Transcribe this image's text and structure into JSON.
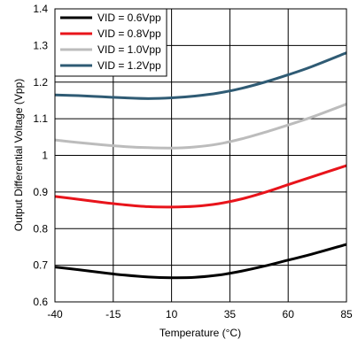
{
  "chart_data": {
    "type": "line",
    "xlabel": "Temperature (°C)",
    "ylabel": "Output Differential Voltage (Vpp)",
    "xlim": [
      -40,
      85
    ],
    "ylim": [
      0.6,
      1.4
    ],
    "xticks": [
      "-40",
      "-15",
      "10",
      "35",
      "60",
      "85"
    ],
    "yticks": [
      "0.6",
      "0.7",
      "0.8",
      "0.9",
      "1",
      "1.1",
      "1.2",
      "1.3",
      "1.4"
    ],
    "grid": true,
    "legend_position": "top-left",
    "x": [
      -40,
      -30,
      -20,
      -10,
      0,
      10,
      20,
      30,
      40,
      50,
      60,
      70,
      85
    ],
    "series": [
      {
        "name": "VID = 0.6Vpp",
        "color": "#000000",
        "values": [
          0.695,
          0.688,
          0.68,
          0.673,
          0.668,
          0.666,
          0.667,
          0.673,
          0.684,
          0.698,
          0.714,
          0.73,
          0.757
        ]
      },
      {
        "name": "VID = 0.8Vpp",
        "color": "#e8141b",
        "values": [
          0.888,
          0.88,
          0.872,
          0.865,
          0.86,
          0.859,
          0.861,
          0.868,
          0.881,
          0.899,
          0.92,
          0.941,
          0.972
        ]
      },
      {
        "name": "VID = 1.0Vpp",
        "color": "#bcbcbc",
        "values": [
          1.042,
          1.035,
          1.029,
          1.024,
          1.021,
          1.02,
          1.023,
          1.031,
          1.045,
          1.063,
          1.083,
          1.104,
          1.14
        ]
      },
      {
        "name": "VID = 1.2Vpp",
        "color": "#2f5b74",
        "values": [
          1.165,
          1.163,
          1.16,
          1.157,
          1.155,
          1.157,
          1.162,
          1.17,
          1.183,
          1.2,
          1.22,
          1.242,
          1.28
        ]
      }
    ]
  }
}
